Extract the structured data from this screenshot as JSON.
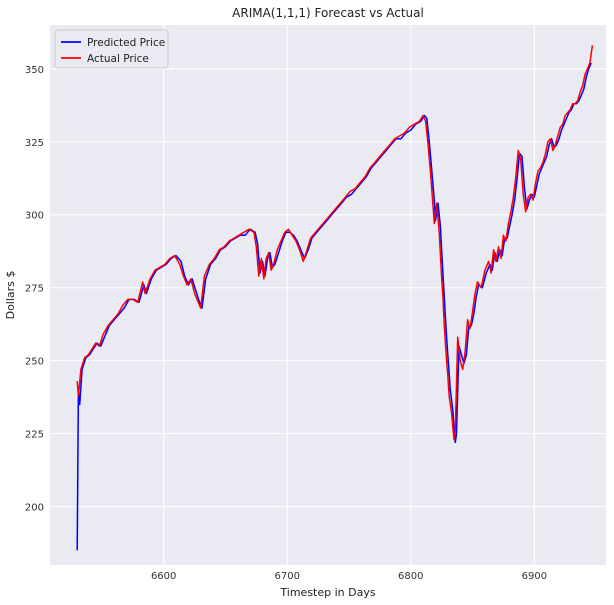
{
  "chart_data": {
    "type": "line",
    "title": "ARIMA(1,1,1) Forecast vs Actual",
    "xlabel": "Timestep in Days",
    "ylabel": "Dollars $",
    "xlim": [
      6508,
      6958
    ],
    "ylim": [
      180,
      365
    ],
    "xticks": [
      6600,
      6700,
      6800,
      6900
    ],
    "yticks": [
      200,
      225,
      250,
      275,
      300,
      325,
      350
    ],
    "grid": true,
    "legend_position": "top-left",
    "background_color": "#eaeaf2",
    "series": [
      {
        "name": "Predicted Price",
        "color": "#0000ff",
        "points": [
          [
            6530,
            185
          ],
          [
            6531,
            240
          ],
          [
            6532,
            235
          ],
          [
            6534,
            247
          ],
          [
            6537,
            251
          ],
          [
            6540,
            252
          ],
          [
            6543,
            254
          ],
          [
            6546,
            256
          ],
          [
            6549,
            255
          ],
          [
            6552,
            258
          ],
          [
            6556,
            262
          ],
          [
            6560,
            264
          ],
          [
            6564,
            266
          ],
          [
            6568,
            268
          ],
          [
            6572,
            271
          ],
          [
            6576,
            271
          ],
          [
            6580,
            270
          ],
          [
            6584,
            276
          ],
          [
            6586,
            273
          ],
          [
            6590,
            278
          ],
          [
            6594,
            281
          ],
          [
            6598,
            282
          ],
          [
            6602,
            283
          ],
          [
            6606,
            285
          ],
          [
            6610,
            286
          ],
          [
            6614,
            284
          ],
          [
            6617,
            279
          ],
          [
            6620,
            276
          ],
          [
            6623,
            278
          ],
          [
            6626,
            274
          ],
          [
            6629,
            270
          ],
          [
            6631,
            268
          ],
          [
            6634,
            278
          ],
          [
            6638,
            283
          ],
          [
            6642,
            285
          ],
          [
            6646,
            288
          ],
          [
            6650,
            289
          ],
          [
            6654,
            291
          ],
          [
            6658,
            292
          ],
          [
            6662,
            293
          ],
          [
            6666,
            293
          ],
          [
            6670,
            295
          ],
          [
            6674,
            294
          ],
          [
            6676,
            290
          ],
          [
            6678,
            280
          ],
          [
            6680,
            284
          ],
          [
            6682,
            279
          ],
          [
            6684,
            285
          ],
          [
            6686,
            287
          ],
          [
            6688,
            282
          ],
          [
            6690,
            283
          ],
          [
            6693,
            287
          ],
          [
            6696,
            291
          ],
          [
            6699,
            294
          ],
          [
            6702,
            294
          ],
          [
            6705,
            293
          ],
          [
            6708,
            291
          ],
          [
            6711,
            288
          ],
          [
            6714,
            285
          ],
          [
            6717,
            288
          ],
          [
            6720,
            292
          ],
          [
            6724,
            294
          ],
          [
            6728,
            296
          ],
          [
            6732,
            298
          ],
          [
            6736,
            300
          ],
          [
            6740,
            302
          ],
          [
            6744,
            304
          ],
          [
            6748,
            306
          ],
          [
            6752,
            307
          ],
          [
            6756,
            309
          ],
          [
            6760,
            311
          ],
          [
            6764,
            313
          ],
          [
            6768,
            316
          ],
          [
            6772,
            318
          ],
          [
            6776,
            320
          ],
          [
            6780,
            322
          ],
          [
            6784,
            324
          ],
          [
            6788,
            326
          ],
          [
            6792,
            326
          ],
          [
            6796,
            328
          ],
          [
            6800,
            329
          ],
          [
            6804,
            331
          ],
          [
            6808,
            332
          ],
          [
            6811,
            334
          ],
          [
            6813,
            333
          ],
          [
            6815,
            325
          ],
          [
            6817,
            315
          ],
          [
            6819,
            305
          ],
          [
            6820,
            298
          ],
          [
            6822,
            304
          ],
          [
            6824,
            296
          ],
          [
            6826,
            280
          ],
          [
            6827,
            273
          ],
          [
            6828,
            265
          ],
          [
            6829,
            258
          ],
          [
            6830,
            252
          ],
          [
            6831,
            246
          ],
          [
            6832,
            240
          ],
          [
            6834,
            233
          ],
          [
            6836,
            222
          ],
          [
            6837,
            225
          ],
          [
            6839,
            255
          ],
          [
            6841,
            252
          ],
          [
            6843,
            249
          ],
          [
            6845,
            252
          ],
          [
            6847,
            262
          ],
          [
            6849,
            262
          ],
          [
            6851,
            266
          ],
          [
            6853,
            272
          ],
          [
            6855,
            276
          ],
          [
            6858,
            275
          ],
          [
            6861,
            280
          ],
          [
            6864,
            283
          ],
          [
            6866,
            281
          ],
          [
            6868,
            287
          ],
          [
            6870,
            284
          ],
          [
            6872,
            288
          ],
          [
            6874,
            286
          ],
          [
            6876,
            292
          ],
          [
            6878,
            292
          ],
          [
            6880,
            296
          ],
          [
            6882,
            300
          ],
          [
            6884,
            305
          ],
          [
            6886,
            312
          ],
          [
            6888,
            321
          ],
          [
            6890,
            320
          ],
          [
            6892,
            309
          ],
          [
            6894,
            302
          ],
          [
            6896,
            305
          ],
          [
            6898,
            307
          ],
          [
            6900,
            306
          ],
          [
            6902,
            310
          ],
          [
            6904,
            314
          ],
          [
            6906,
            316
          ],
          [
            6908,
            318
          ],
          [
            6910,
            320
          ],
          [
            6912,
            324
          ],
          [
            6914,
            326
          ],
          [
            6916,
            323
          ],
          [
            6918,
            324
          ],
          [
            6920,
            326
          ],
          [
            6922,
            329
          ],
          [
            6924,
            331
          ],
          [
            6926,
            333
          ],
          [
            6928,
            335
          ],
          [
            6930,
            336
          ],
          [
            6932,
            338
          ],
          [
            6934,
            338
          ],
          [
            6936,
            339
          ],
          [
            6938,
            341
          ],
          [
            6940,
            343
          ],
          [
            6942,
            347
          ],
          [
            6944,
            350
          ],
          [
            6946,
            352
          ]
        ]
      },
      {
        "name": "Actual Price",
        "color": "#ff0000",
        "points": [
          [
            6530,
            243
          ],
          [
            6531,
            238
          ],
          [
            6533,
            247
          ],
          [
            6536,
            251
          ],
          [
            6539,
            252
          ],
          [
            6542,
            254
          ],
          [
            6545,
            256
          ],
          [
            6548,
            255
          ],
          [
            6551,
            259
          ],
          [
            6555,
            262
          ],
          [
            6559,
            264
          ],
          [
            6563,
            266
          ],
          [
            6567,
            269
          ],
          [
            6571,
            271
          ],
          [
            6575,
            271
          ],
          [
            6579,
            270
          ],
          [
            6583,
            277
          ],
          [
            6585,
            273
          ],
          [
            6589,
            278
          ],
          [
            6593,
            281
          ],
          [
            6597,
            282
          ],
          [
            6601,
            283
          ],
          [
            6605,
            285
          ],
          [
            6609,
            286
          ],
          [
            6613,
            283
          ],
          [
            6616,
            279
          ],
          [
            6619,
            276
          ],
          [
            6622,
            278
          ],
          [
            6625,
            273
          ],
          [
            6628,
            270
          ],
          [
            6630,
            268
          ],
          [
            6633,
            279
          ],
          [
            6637,
            283
          ],
          [
            6641,
            285
          ],
          [
            6645,
            288
          ],
          [
            6649,
            289
          ],
          [
            6653,
            291
          ],
          [
            6657,
            292
          ],
          [
            6661,
            293
          ],
          [
            6665,
            294
          ],
          [
            6669,
            295
          ],
          [
            6673,
            294
          ],
          [
            6675,
            289
          ],
          [
            6677,
            279
          ],
          [
            6679,
            285
          ],
          [
            6681,
            278
          ],
          [
            6683,
            285
          ],
          [
            6685,
            287
          ],
          [
            6687,
            281
          ],
          [
            6689,
            283
          ],
          [
            6692,
            288
          ],
          [
            6695,
            291
          ],
          [
            6698,
            294
          ],
          [
            6701,
            295
          ],
          [
            6704,
            293
          ],
          [
            6707,
            291
          ],
          [
            6710,
            288
          ],
          [
            6713,
            284
          ],
          [
            6716,
            288
          ],
          [
            6719,
            292
          ],
          [
            6723,
            294
          ],
          [
            6727,
            296
          ],
          [
            6731,
            298
          ],
          [
            6735,
            300
          ],
          [
            6739,
            302
          ],
          [
            6743,
            304
          ],
          [
            6747,
            306
          ],
          [
            6751,
            308
          ],
          [
            6755,
            309
          ],
          [
            6759,
            311
          ],
          [
            6763,
            313
          ],
          [
            6767,
            316
          ],
          [
            6771,
            318
          ],
          [
            6775,
            320
          ],
          [
            6779,
            322
          ],
          [
            6783,
            324
          ],
          [
            6787,
            326
          ],
          [
            6791,
            327
          ],
          [
            6795,
            328
          ],
          [
            6799,
            330
          ],
          [
            6803,
            331
          ],
          [
            6807,
            332
          ],
          [
            6810,
            334
          ],
          [
            6812,
            332
          ],
          [
            6814,
            324
          ],
          [
            6816,
            314
          ],
          [
            6818,
            303
          ],
          [
            6819,
            297
          ],
          [
            6821,
            304
          ],
          [
            6823,
            294
          ],
          [
            6825,
            278
          ],
          [
            6826,
            272
          ],
          [
            6827,
            263
          ],
          [
            6828,
            256
          ],
          [
            6829,
            250
          ],
          [
            6830,
            245
          ],
          [
            6831,
            238
          ],
          [
            6833,
            232
          ],
          [
            6835,
            223
          ],
          [
            6836,
            226
          ],
          [
            6838,
            258
          ],
          [
            6840,
            250
          ],
          [
            6842,
            247
          ],
          [
            6844,
            253
          ],
          [
            6846,
            264
          ],
          [
            6848,
            261
          ],
          [
            6850,
            267
          ],
          [
            6852,
            273
          ],
          [
            6854,
            277
          ],
          [
            6857,
            275
          ],
          [
            6860,
            281
          ],
          [
            6863,
            284
          ],
          [
            6865,
            280
          ],
          [
            6867,
            288
          ],
          [
            6869,
            284
          ],
          [
            6871,
            289
          ],
          [
            6873,
            285
          ],
          [
            6875,
            293
          ],
          [
            6877,
            291
          ],
          [
            6879,
            297
          ],
          [
            6881,
            301
          ],
          [
            6883,
            306
          ],
          [
            6885,
            313
          ],
          [
            6887,
            322
          ],
          [
            6889,
            319
          ],
          [
            6891,
            307
          ],
          [
            6893,
            301
          ],
          [
            6895,
            306
          ],
          [
            6897,
            307
          ],
          [
            6899,
            305
          ],
          [
            6901,
            311
          ],
          [
            6903,
            315
          ],
          [
            6905,
            316
          ],
          [
            6907,
            318
          ],
          [
            6909,
            321
          ],
          [
            6911,
            325
          ],
          [
            6913,
            326
          ],
          [
            6915,
            322
          ],
          [
            6917,
            324
          ],
          [
            6919,
            327
          ],
          [
            6921,
            330
          ],
          [
            6923,
            331
          ],
          [
            6925,
            334
          ],
          [
            6927,
            335
          ],
          [
            6929,
            336
          ],
          [
            6931,
            338
          ],
          [
            6933,
            338
          ],
          [
            6935,
            339
          ],
          [
            6937,
            342
          ],
          [
            6939,
            344
          ],
          [
            6941,
            348
          ],
          [
            6943,
            350
          ],
          [
            6945,
            352
          ],
          [
            6947,
            358
          ]
        ]
      }
    ]
  }
}
